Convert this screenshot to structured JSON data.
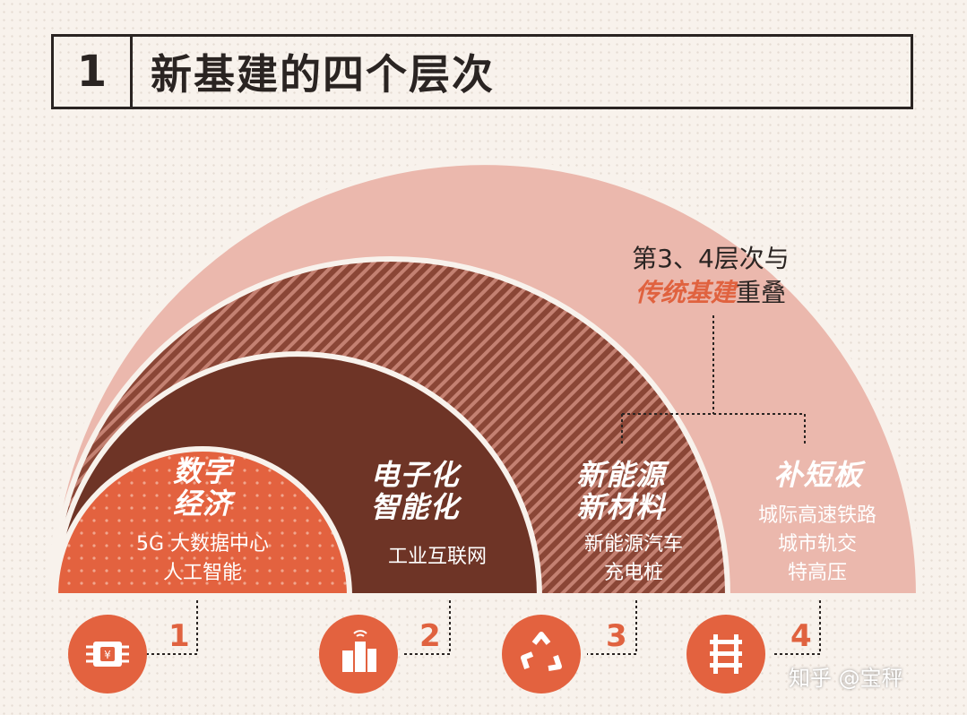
{
  "title": {
    "number": "1",
    "text": "新基建的四个层次"
  },
  "note": {
    "line1": "第3、4层次与",
    "highlight": "传统基建",
    "line2_rest": "重叠"
  },
  "layers": [
    {
      "index": "1",
      "heading_1": "数字",
      "heading_2": "经济",
      "sub_1": "5G  大数据中心",
      "sub_2": "人工智能",
      "icon": "chip-icon",
      "color": "#e3623f"
    },
    {
      "index": "2",
      "heading_1": "电子化",
      "heading_2": "智能化",
      "sub_1": "工业互联网",
      "icon": "factory-icon",
      "color": "#6e3426"
    },
    {
      "index": "3",
      "heading_1": "新能源",
      "heading_2": "新材料",
      "sub_1": "新能源汽车",
      "sub_2": "充电桩",
      "icon": "recycle-icon",
      "color": "#9c5446"
    },
    {
      "index": "4",
      "heading_1": "补短板",
      "sub_1": "城际高速铁路",
      "sub_2": "城市轨交",
      "sub_3": "特高压",
      "icon": "rail-track-icon",
      "color": "#ebb8ad"
    }
  ],
  "watermark": "知乎 @宝秤"
}
